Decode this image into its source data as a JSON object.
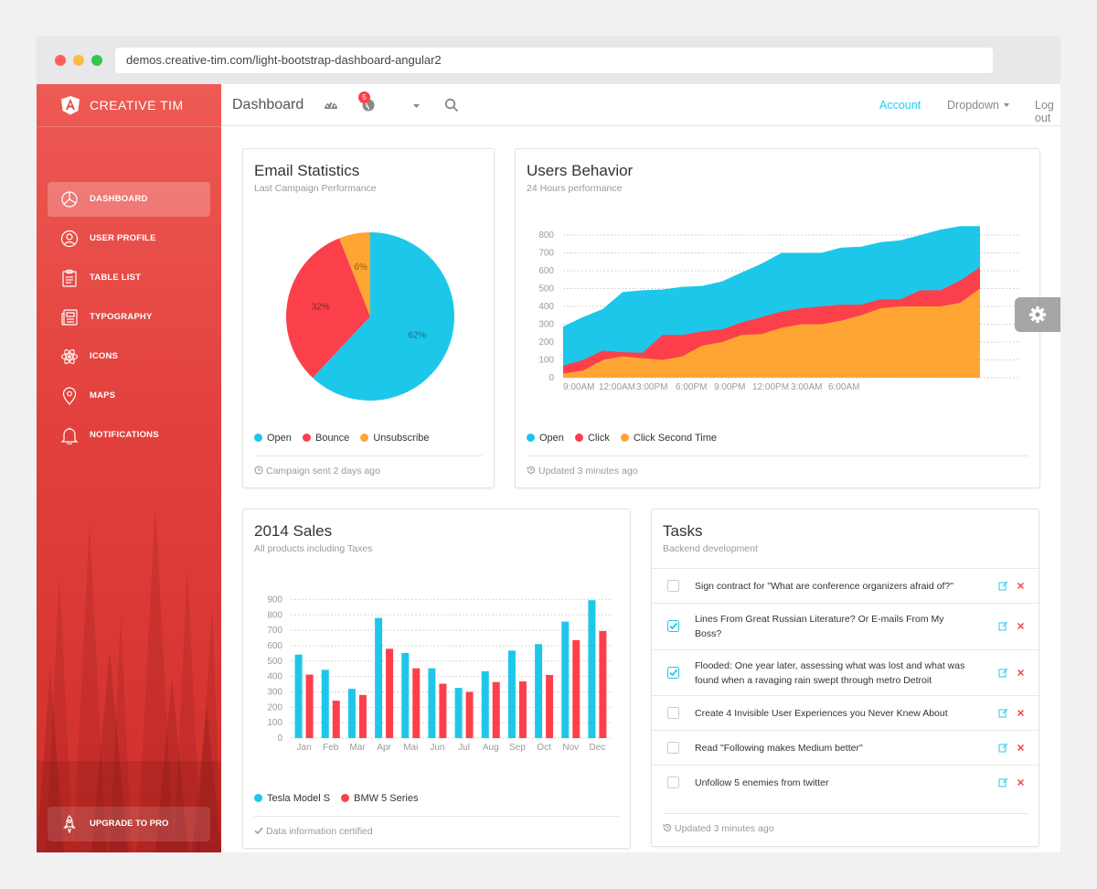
{
  "browser": {
    "url": "demos.creative-tim.com/light-bootstrap-dashboard-angular2"
  },
  "sidebar": {
    "logo_text": "CREATIVE TIM",
    "items": [
      {
        "label": "DASHBOARD",
        "icon": "pie-chart-icon",
        "active": true
      },
      {
        "label": "USER PROFILE",
        "icon": "user-icon",
        "active": false
      },
      {
        "label": "TABLE LIST",
        "icon": "clipboard-icon",
        "active": false
      },
      {
        "label": "TYPOGRAPHY",
        "icon": "news-paper-icon",
        "active": false
      },
      {
        "label": "ICONS",
        "icon": "atom-icon",
        "active": false
      },
      {
        "label": "MAPS",
        "icon": "map-pin-icon",
        "active": false
      },
      {
        "label": "NOTIFICATIONS",
        "icon": "bell-icon",
        "active": false
      }
    ],
    "upgrade_label": "UPGRADE TO PRO",
    "color_top": "#ee5a54",
    "color_bottom": "#cf2f2b"
  },
  "navbar": {
    "brand": "Dashboard",
    "notification_count": "5",
    "account": "Account",
    "dropdown": "Dropdown",
    "logout": "Log out",
    "accent": "#23ccef"
  },
  "email_stats": {
    "title": "Email Statistics",
    "subtitle": "Last Campaign Performance",
    "legend": [
      "Open",
      "Bounce",
      "Unsubscribe"
    ],
    "footer": "Campaign sent 2 days ago",
    "chart_data": {
      "type": "pie",
      "labels": [
        "Open",
        "Bounce",
        "Unsubscribe"
      ],
      "values": [
        62,
        32,
        6
      ],
      "value_labels": [
        "62%",
        "32%",
        "6%"
      ],
      "colors": [
        "#1dc7ea",
        "#fb404b",
        "#ffa534"
      ]
    }
  },
  "users_behavior": {
    "title": "Users Behavior",
    "subtitle": "24 Hours performance",
    "legend": [
      "Open",
      "Click",
      "Click Second Time"
    ],
    "footer": "Updated 3 minutes ago",
    "chart_data": {
      "type": "area",
      "x_tick_labels": [
        "9:00AM",
        "12:00AM",
        "3:00PM",
        "6:00PM",
        "9:00PM",
        "12:00PM",
        "3:00AM",
        "6:00AM"
      ],
      "y_ticks": [
        0,
        100,
        200,
        300,
        400,
        500,
        600,
        700,
        800
      ],
      "ylim": [
        0,
        800
      ],
      "series": [
        {
          "name": "Open",
          "color": "#1dc7ea",
          "values": [
            287,
            340,
            385,
            480,
            490,
            495,
            510,
            515,
            540,
            590,
            640,
            700,
            700,
            700,
            730,
            735,
            760,
            770,
            800,
            830,
            850,
            850
          ]
        },
        {
          "name": "Click",
          "color": "#fb404b",
          "values": [
            67,
            100,
            152,
            143,
            140,
            240,
            240,
            260,
            270,
            310,
            340,
            370,
            390,
            400,
            410,
            410,
            440,
            440,
            490,
            490,
            545,
            620
          ]
        },
        {
          "name": "Click Second Time",
          "color": "#ffa534",
          "values": [
            23,
            40,
            100,
            120,
            110,
            100,
            120,
            180,
            200,
            240,
            245,
            280,
            300,
            300,
            320,
            350,
            390,
            400,
            400,
            400,
            420,
            500
          ]
        }
      ]
    }
  },
  "sales": {
    "title": "2014 Sales",
    "subtitle": "All products including Taxes",
    "legend": [
      "Tesla Model S",
      "BMW 5 Series"
    ],
    "footer": "Data information certified",
    "chart_data": {
      "type": "bar",
      "categories": [
        "Jan",
        "Feb",
        "Mar",
        "Apr",
        "Mai",
        "Jun",
        "Jul",
        "Aug",
        "Sep",
        "Oct",
        "Nov",
        "Dec"
      ],
      "y_ticks": [
        0,
        100,
        200,
        300,
        400,
        500,
        600,
        700,
        800,
        900
      ],
      "ylim": [
        0,
        950
      ],
      "series": [
        {
          "name": "Tesla Model S",
          "color": "#1dc7ea",
          "values": [
            542,
            443,
            320,
            780,
            553,
            453,
            326,
            434,
            568,
            610,
            756,
            895
          ]
        },
        {
          "name": "BMW 5 Series",
          "color": "#fb404b",
          "values": [
            412,
            243,
            280,
            580,
            453,
            353,
            300,
            364,
            368,
            410,
            636,
            695
          ]
        }
      ]
    }
  },
  "tasks": {
    "title": "Tasks",
    "subtitle": "Backend development",
    "footer": "Updated 3 minutes ago",
    "items": [
      {
        "text": "Sign contract for \"What are conference organizers afraid of?\"",
        "checked": false
      },
      {
        "text": "Lines From Great Russian Literature? Or E-mails From My Boss?",
        "checked": true
      },
      {
        "text": "Flooded: One year later, assessing what was lost and what was found when a ravaging rain swept through metro Detroit",
        "checked": true
      },
      {
        "text": "Create 4 Invisible User Experiences you Never Knew About",
        "checked": false
      },
      {
        "text": "Read \"Following makes Medium better\"",
        "checked": false
      },
      {
        "text": "Unfollow 5 enemies from twitter",
        "checked": false
      }
    ]
  },
  "fixed_plugin": {
    "icon": "gear-icon"
  }
}
